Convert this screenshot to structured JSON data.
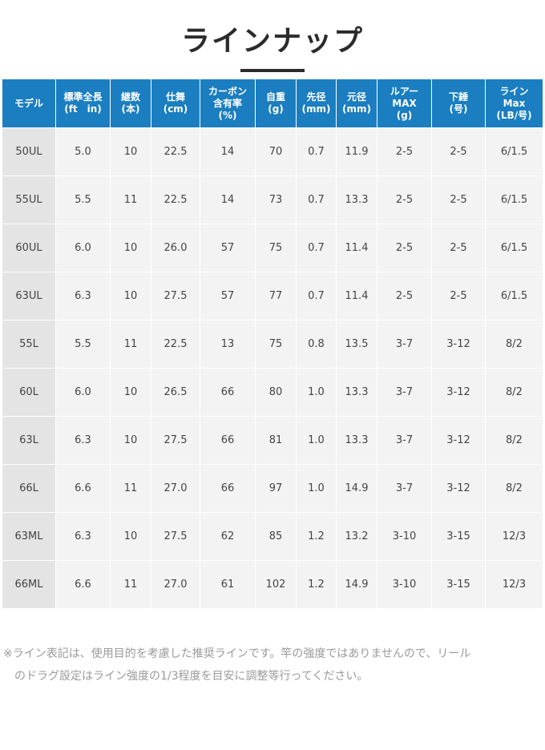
{
  "title": "ラインナップ",
  "headers": [
    [
      "モデル"
    ],
    [
      "標準全長",
      "(ft　in)"
    ],
    [
      "継数",
      "(本)"
    ],
    [
      "仕舞",
      "(cm)"
    ],
    [
      "カーボン",
      "含有率",
      "(%)"
    ],
    [
      "自重",
      "(g)"
    ],
    [
      "先径",
      "(mm)"
    ],
    [
      "元径",
      "(mm)"
    ],
    [
      "ルアー",
      "MAX",
      "(g)"
    ],
    [
      "下錘",
      "(号)"
    ],
    [
      "ライン",
      "Max",
      "(LB/号)"
    ]
  ],
  "rows": [
    [
      "50UL",
      "5.0",
      "10",
      "22.5",
      "14",
      "70",
      "0.7",
      "11.9",
      "2-5",
      "2-5",
      "6/1.5"
    ],
    [
      "55UL",
      "5.5",
      "11",
      "22.5",
      "14",
      "73",
      "0.7",
      "13.3",
      "2-5",
      "2-5",
      "6/1.5"
    ],
    [
      "60UL",
      "6.0",
      "10",
      "26.0",
      "57",
      "75",
      "0.7",
      "11.4",
      "2-5",
      "2-5",
      "6/1.5"
    ],
    [
      "63UL",
      "6.3",
      "10",
      "27.5",
      "57",
      "77",
      "0.7",
      "11.4",
      "2-5",
      "2-5",
      "6/1.5"
    ],
    [
      "55L",
      "5.5",
      "11",
      "22.5",
      "13",
      "75",
      "0.8",
      "13.5",
      "3-7",
      "3-12",
      "8/2"
    ],
    [
      "60L",
      "6.0",
      "10",
      "26.5",
      "66",
      "80",
      "1.0",
      "13.3",
      "3-7",
      "3-12",
      "8/2"
    ],
    [
      "63L",
      "6.3",
      "10",
      "27.5",
      "66",
      "81",
      "1.0",
      "13.3",
      "3-7",
      "3-12",
      "8/2"
    ],
    [
      "66L",
      "6.6",
      "11",
      "27.0",
      "66",
      "97",
      "1.0",
      "14.9",
      "3-7",
      "3-12",
      "8/2"
    ],
    [
      "63ML",
      "6.3",
      "10",
      "27.5",
      "62",
      "85",
      "1.2",
      "13.2",
      "3-10",
      "3-15",
      "12/3"
    ],
    [
      "66ML",
      "6.6",
      "11",
      "27.0",
      "61",
      "102",
      "1.2",
      "14.9",
      "3-10",
      "3-15",
      "12/3"
    ]
  ],
  "note": {
    "line1": "※ライン表記は、使用目的を考慮した推奨ラインです。竿の強度ではありませんので、リール",
    "line2": "のドラグ設定はライン強度の1/3程度を目安に調整等行ってください。"
  },
  "colors": {
    "header_bg": "#1a7ec0",
    "cell_bg": "#f3f3f3",
    "model_bg": "#e4e4e4"
  }
}
